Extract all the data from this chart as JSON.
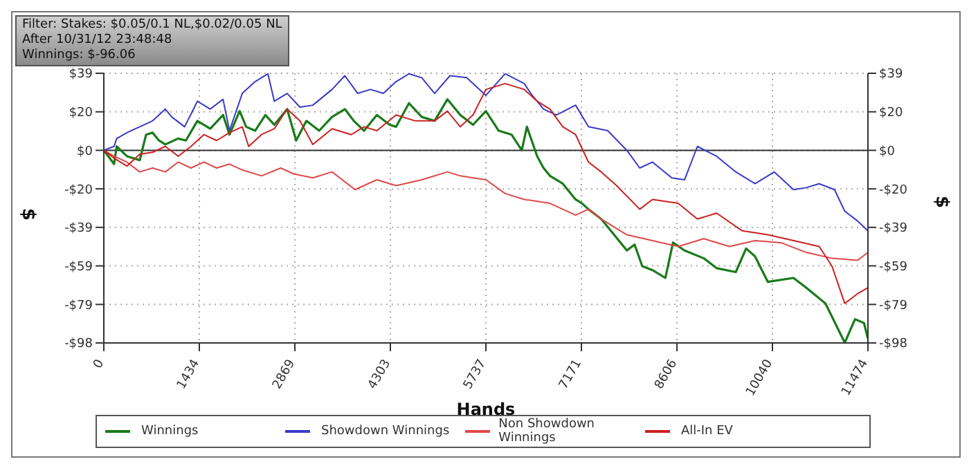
{
  "chart_data": {
    "type": "line",
    "xlabel": "Hands",
    "ylabel": "$",
    "y2label": "$",
    "annotations": [
      "Filter: Stakes: $0.05/0.1 NL,$0.02/0.05 NL",
      "After 10/31/12 23:48:48",
      "Winnings: $-96.06"
    ],
    "xlim": [
      0,
      11474
    ],
    "xticks": [
      0,
      1434,
      2869,
      4303,
      5737,
      7171,
      8606,
      10040,
      11474
    ],
    "ylim": [
      -98.1,
      39.24
    ],
    "yticks": [
      {
        "value": 39.24,
        "label": "$39"
      },
      {
        "value": 19.62,
        "label": "$20"
      },
      {
        "value": 0,
        "label": "$0"
      },
      {
        "value": -19.62,
        "label": "-$20"
      },
      {
        "value": -39.24,
        "label": "-$39"
      },
      {
        "value": -58.86,
        "label": "-$59"
      },
      {
        "value": -78.5,
        "label": "-$79"
      },
      {
        "value": -98.1,
        "label": "-$98"
      }
    ],
    "y2lim": [
      -98.1,
      39.24
    ],
    "y2ticks": [
      {
        "value": 39.24,
        "label": "$39"
      },
      {
        "value": 19.62,
        "label": "$20"
      },
      {
        "value": 0,
        "label": "$0"
      },
      {
        "value": -19.62,
        "label": "-$20"
      },
      {
        "value": -39.24,
        "label": "-$39"
      },
      {
        "value": -58.86,
        "label": "-$59"
      },
      {
        "value": -78.5,
        "label": "-$79"
      },
      {
        "value": -98.1,
        "label": "-$98"
      }
    ],
    "grid": true,
    "legend": "bottom",
    "marker": "none",
    "line_style": "solid",
    "ref_lines": [
      {
        "axis": "y",
        "value": 0,
        "color": "#333333"
      }
    ],
    "series": [
      {
        "name": "Winnings",
        "color": "#1a7a1a",
        "x": [
          0,
          154,
          193,
          347,
          539,
          635,
          732,
          828,
          924,
          1117,
          1232,
          1405,
          1598,
          1790,
          1887,
          2040,
          2137,
          2272,
          2426,
          2560,
          2753,
          2888,
          3042,
          3234,
          3427,
          3619,
          3754,
          3908,
          4100,
          4293,
          4389,
          4582,
          4774,
          4967,
          5159,
          5352,
          5544,
          5737,
          5929,
          6122,
          6276,
          6353,
          6507,
          6603,
          6699,
          6892,
          7084,
          7180,
          7277,
          7469,
          7662,
          7854,
          7970,
          8085,
          8239,
          8432,
          8547,
          8720,
          9009,
          9201,
          9490,
          9644,
          9778,
          9971,
          10356,
          10549,
          10837,
          11126,
          11280,
          11415,
          11474
        ],
        "values": [
          0,
          -7,
          2,
          -3,
          -5,
          8,
          9,
          5,
          3,
          6,
          5,
          15,
          11,
          18,
          8,
          20,
          12,
          10,
          18,
          13,
          21,
          5,
          15,
          10,
          17,
          21,
          15,
          10,
          18,
          13,
          12,
          24,
          17,
          15,
          26,
          18,
          13,
          20,
          10,
          8,
          0,
          12,
          -3,
          -9,
          -13,
          -17,
          -25,
          -27,
          -30,
          -35,
          -43,
          -51,
          -48,
          -59,
          -61,
          -65,
          -47,
          -51,
          -55,
          -60,
          -62,
          -50,
          -54,
          -67,
          -65,
          -70,
          -78,
          -98,
          -86,
          -88,
          -96
        ]
      },
      {
        "name": "Showdown Winnings",
        "color": "#3a3ac8",
        "x": [
          0,
          154,
          193,
          347,
          539,
          732,
          924,
          1020,
          1213,
          1405,
          1598,
          1790,
          1887,
          2079,
          2272,
          2464,
          2560,
          2753,
          2945,
          3138,
          3427,
          3619,
          3812,
          4004,
          4197,
          4389,
          4582,
          4774,
          4967,
          5198,
          5448,
          5737,
          6026,
          6314,
          6411,
          6603,
          6796,
          7084,
          7277,
          7566,
          7854,
          8047,
          8239,
          8528,
          8720,
          8913,
          9201,
          9490,
          9779,
          10067,
          10356,
          10549,
          10741,
          10972,
          11126,
          11319,
          11474
        ],
        "values": [
          0,
          2,
          6,
          9,
          12,
          15,
          21,
          17,
          12,
          25,
          21,
          26,
          10,
          29,
          35,
          39,
          25,
          29,
          22,
          23,
          31,
          38,
          29,
          31,
          29,
          35,
          39,
          37,
          29,
          38,
          37,
          28,
          39,
          34,
          29,
          21,
          18,
          23,
          12,
          10,
          0,
          -9,
          -6,
          -14,
          -15,
          2,
          -3,
          -11,
          -17,
          -11,
          -20,
          -19,
          -17,
          -20,
          -31,
          -36,
          -41
        ]
      },
      {
        "name": "Non Showdown Winnings",
        "color": "#e04848",
        "x": [
          0,
          154,
          347,
          539,
          732,
          924,
          1117,
          1309,
          1502,
          1694,
          1887,
          2079,
          2368,
          2657,
          2849,
          3138,
          3427,
          3773,
          4100,
          4389,
          4774,
          5159,
          5352,
          5544,
          5737,
          6026,
          6314,
          6699,
          7084,
          7277,
          7469,
          7854,
          8239,
          8624,
          9009,
          9394,
          9779,
          10164,
          10549,
          10934,
          11319,
          11474
        ],
        "values": [
          0,
          -3,
          -6,
          -11,
          -9,
          -11,
          -6,
          -9,
          -6,
          -9,
          -7,
          -10,
          -13,
          -9,
          -12,
          -14,
          -11,
          -20,
          -15,
          -18,
          -15,
          -11,
          -13,
          -14,
          -15,
          -22,
          -25,
          -27,
          -33,
          -30,
          -35,
          -43,
          -46,
          -49,
          -45,
          -49,
          -46,
          -47,
          -52,
          -55,
          -56,
          -52
        ]
      },
      {
        "name": "All-In EV",
        "color": "#cc2020",
        "x": [
          0,
          154,
          347,
          539,
          732,
          924,
          1117,
          1309,
          1502,
          1694,
          1887,
          2079,
          2175,
          2368,
          2560,
          2753,
          2945,
          3138,
          3427,
          3715,
          3908,
          4100,
          4389,
          4678,
          4967,
          5159,
          5352,
          5544,
          5737,
          6026,
          6314,
          6507,
          6699,
          6892,
          7084,
          7277,
          7469,
          7700,
          8047,
          8239,
          8624,
          8913,
          9201,
          9586,
          9971,
          10356,
          10741,
          10934,
          11126,
          11319,
          11474
        ],
        "values": [
          0,
          -4,
          -8,
          -2,
          -1,
          2,
          -3,
          2,
          8,
          5,
          9,
          12,
          2,
          8,
          11,
          21,
          15,
          3,
          11,
          8,
          12,
          10,
          18,
          15,
          15,
          20,
          12,
          18,
          31,
          34,
          31,
          25,
          21,
          12,
          8,
          -6,
          -11,
          -18,
          -30,
          -25,
          -27,
          -35,
          -32,
          -41,
          -43,
          -46,
          -49,
          -59,
          -78,
          -73,
          -70
        ]
      }
    ]
  }
}
